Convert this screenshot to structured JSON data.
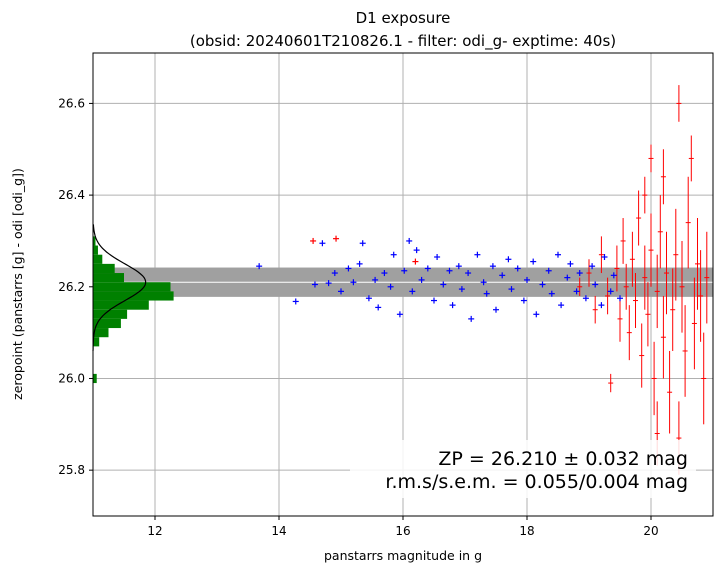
{
  "chart_data": {
    "type": "scatter",
    "title_line1": "D1 exposure",
    "title_line2": "(obsid: 20240601T210826.1 - filter: odi_g- exptime: 40s)",
    "xlabel": "panstarrs magnitude in g",
    "ylabel": "zeropoint (panstarrs [g] - odi [odi_g])",
    "xlim": [
      11.0,
      21.0
    ],
    "ylim": [
      25.7,
      26.71
    ],
    "x_ticks": [
      12,
      14,
      16,
      18,
      20
    ],
    "x_tick_labels": [
      "12",
      "14",
      "16",
      "18",
      "20"
    ],
    "y_ticks": [
      25.8,
      26.0,
      26.2,
      26.4,
      26.6
    ],
    "y_tick_labels": [
      "25.8",
      "26.0",
      "26.2",
      "26.4",
      "26.6"
    ],
    "grid": true,
    "zeropoint": 26.21,
    "zeropoint_band": [
      26.178,
      26.242
    ],
    "annotation_line1": "ZP = 26.210 ± 0.032 mag",
    "annotation_line2": "r.m.s/s.e.m. = 0.055/0.004 mag",
    "colors": {
      "blue": "#0000ff",
      "red": "#ff0000",
      "green": "#008000",
      "band": "#a0a0a0",
      "grid": "#b0b0b0"
    },
    "histogram": {
      "bin_width": 0.02,
      "bins": [
        {
          "y": 26.0,
          "mag": 11.06
        },
        {
          "y": 26.08,
          "mag": 11.1
        },
        {
          "y": 26.1,
          "mag": 11.25
        },
        {
          "y": 26.12,
          "mag": 11.45
        },
        {
          "y": 26.14,
          "mag": 11.55
        },
        {
          "y": 26.16,
          "mag": 11.9
        },
        {
          "y": 26.18,
          "mag": 12.3
        },
        {
          "y": 26.2,
          "mag": 12.25
        },
        {
          "y": 26.22,
          "mag": 11.5
        },
        {
          "y": 26.24,
          "mag": 11.35
        },
        {
          "y": 26.26,
          "mag": 11.15
        },
        {
          "y": 26.28,
          "mag": 11.08
        },
        {
          "y": 26.3,
          "mag": 11.04
        }
      ]
    },
    "gaussian": {
      "mu": 26.21,
      "sigma": 0.04,
      "peak_mag": 11.85
    },
    "outlier_red_plus": [
      {
        "x": 14.55,
        "y": 26.3
      },
      {
        "x": 14.92,
        "y": 26.305
      },
      {
        "x": 16.2,
        "y": 26.255
      }
    ],
    "blue_points": [
      {
        "x": 13.68,
        "y": 26.245
      },
      {
        "x": 14.27,
        "y": 26.168
      },
      {
        "x": 14.58,
        "y": 26.205
      },
      {
        "x": 14.7,
        "y": 26.295
      },
      {
        "x": 14.8,
        "y": 26.208
      },
      {
        "x": 14.9,
        "y": 26.23
      },
      {
        "x": 15.0,
        "y": 26.19
      },
      {
        "x": 15.12,
        "y": 26.24
      },
      {
        "x": 15.2,
        "y": 26.21
      },
      {
        "x": 15.3,
        "y": 26.25
      },
      {
        "x": 15.35,
        "y": 26.295
      },
      {
        "x": 15.45,
        "y": 26.175
      },
      {
        "x": 15.55,
        "y": 26.215
      },
      {
        "x": 15.6,
        "y": 26.155
      },
      {
        "x": 15.7,
        "y": 26.23
      },
      {
        "x": 15.8,
        "y": 26.2
      },
      {
        "x": 15.85,
        "y": 26.27
      },
      {
        "x": 15.95,
        "y": 26.14
      },
      {
        "x": 16.02,
        "y": 26.235
      },
      {
        "x": 16.1,
        "y": 26.3
      },
      {
        "x": 16.15,
        "y": 26.19
      },
      {
        "x": 16.22,
        "y": 26.28
      },
      {
        "x": 16.3,
        "y": 26.215
      },
      {
        "x": 16.4,
        "y": 26.24
      },
      {
        "x": 16.5,
        "y": 26.17
      },
      {
        "x": 16.55,
        "y": 26.265
      },
      {
        "x": 16.65,
        "y": 26.205
      },
      {
        "x": 16.75,
        "y": 26.235
      },
      {
        "x": 16.8,
        "y": 26.16
      },
      {
        "x": 16.9,
        "y": 26.245
      },
      {
        "x": 16.95,
        "y": 26.195
      },
      {
        "x": 17.05,
        "y": 26.23
      },
      {
        "x": 17.1,
        "y": 26.13
      },
      {
        "x": 17.2,
        "y": 26.27
      },
      {
        "x": 17.3,
        "y": 26.21
      },
      {
        "x": 17.35,
        "y": 26.185
      },
      {
        "x": 17.45,
        "y": 26.245
      },
      {
        "x": 17.5,
        "y": 26.15
      },
      {
        "x": 17.6,
        "y": 26.225
      },
      {
        "x": 17.7,
        "y": 26.26
      },
      {
        "x": 17.75,
        "y": 26.195
      },
      {
        "x": 17.85,
        "y": 26.24
      },
      {
        "x": 17.95,
        "y": 26.17
      },
      {
        "x": 18.0,
        "y": 26.215
      },
      {
        "x": 18.1,
        "y": 26.255
      },
      {
        "x": 18.15,
        "y": 26.14
      },
      {
        "x": 18.25,
        "y": 26.205
      },
      {
        "x": 18.35,
        "y": 26.235
      },
      {
        "x": 18.4,
        "y": 26.185
      },
      {
        "x": 18.5,
        "y": 26.27
      },
      {
        "x": 18.55,
        "y": 26.16
      },
      {
        "x": 18.65,
        "y": 26.22
      },
      {
        "x": 18.7,
        "y": 26.25
      },
      {
        "x": 18.8,
        "y": 26.19
      },
      {
        "x": 18.85,
        "y": 26.23
      },
      {
        "x": 18.95,
        "y": 26.175
      },
      {
        "x": 19.05,
        "y": 26.245
      },
      {
        "x": 19.1,
        "y": 26.205
      },
      {
        "x": 19.2,
        "y": 26.16
      },
      {
        "x": 19.25,
        "y": 26.265
      },
      {
        "x": 19.35,
        "y": 26.19
      },
      {
        "x": 19.4,
        "y": 26.225
      },
      {
        "x": 19.5,
        "y": 26.175
      }
    ],
    "red_points": [
      {
        "x": 18.85,
        "y": 26.2,
        "err": 0.02
      },
      {
        "x": 19.0,
        "y": 26.23,
        "err": 0.03
      },
      {
        "x": 19.1,
        "y": 26.15,
        "err": 0.03
      },
      {
        "x": 19.2,
        "y": 26.27,
        "err": 0.04
      },
      {
        "x": 19.3,
        "y": 26.18,
        "err": 0.04
      },
      {
        "x": 19.35,
        "y": 25.99,
        "err": 0.02
      },
      {
        "x": 19.45,
        "y": 26.24,
        "err": 0.05
      },
      {
        "x": 19.5,
        "y": 26.13,
        "err": 0.05
      },
      {
        "x": 19.55,
        "y": 26.3,
        "err": 0.05
      },
      {
        "x": 19.6,
        "y": 26.2,
        "err": 0.05
      },
      {
        "x": 19.65,
        "y": 26.1,
        "err": 0.06
      },
      {
        "x": 19.7,
        "y": 26.26,
        "err": 0.06
      },
      {
        "x": 19.75,
        "y": 26.17,
        "err": 0.06
      },
      {
        "x": 19.8,
        "y": 26.35,
        "err": 0.06
      },
      {
        "x": 19.85,
        "y": 26.05,
        "err": 0.07
      },
      {
        "x": 19.9,
        "y": 26.22,
        "err": 0.07
      },
      {
        "x": 19.9,
        "y": 26.4,
        "err": 0.04
      },
      {
        "x": 19.95,
        "y": 26.14,
        "err": 0.07
      },
      {
        "x": 20.0,
        "y": 26.48,
        "err": 0.03
      },
      {
        "x": 20.0,
        "y": 26.28,
        "err": 0.08
      },
      {
        "x": 20.05,
        "y": 26.0,
        "err": 0.08
      },
      {
        "x": 20.1,
        "y": 26.19,
        "err": 0.08
      },
      {
        "x": 20.1,
        "y": 25.88,
        "err": 0.07
      },
      {
        "x": 20.15,
        "y": 26.32,
        "err": 0.08
      },
      {
        "x": 20.2,
        "y": 26.44,
        "err": 0.06
      },
      {
        "x": 20.2,
        "y": 26.09,
        "err": 0.09
      },
      {
        "x": 20.25,
        "y": 26.23,
        "err": 0.09
      },
      {
        "x": 20.3,
        "y": 25.97,
        "err": 0.09
      },
      {
        "x": 20.35,
        "y": 26.15,
        "err": 0.09
      },
      {
        "x": 20.4,
        "y": 26.27,
        "err": 0.1
      },
      {
        "x": 20.45,
        "y": 26.6,
        "err": 0.04
      },
      {
        "x": 20.45,
        "y": 25.87,
        "err": 0.08
      },
      {
        "x": 20.5,
        "y": 26.2,
        "err": 0.1
      },
      {
        "x": 20.55,
        "y": 26.06,
        "err": 0.1
      },
      {
        "x": 20.6,
        "y": 26.34,
        "err": 0.1
      },
      {
        "x": 20.65,
        "y": 26.48,
        "err": 0.05
      },
      {
        "x": 20.7,
        "y": 26.12,
        "err": 0.1
      },
      {
        "x": 20.75,
        "y": 26.25,
        "err": 0.1
      },
      {
        "x": 20.8,
        "y": 26.18,
        "err": 0.1
      },
      {
        "x": 20.85,
        "y": 26.0,
        "err": 0.1
      },
      {
        "x": 20.9,
        "y": 26.22,
        "err": 0.1
      }
    ]
  }
}
